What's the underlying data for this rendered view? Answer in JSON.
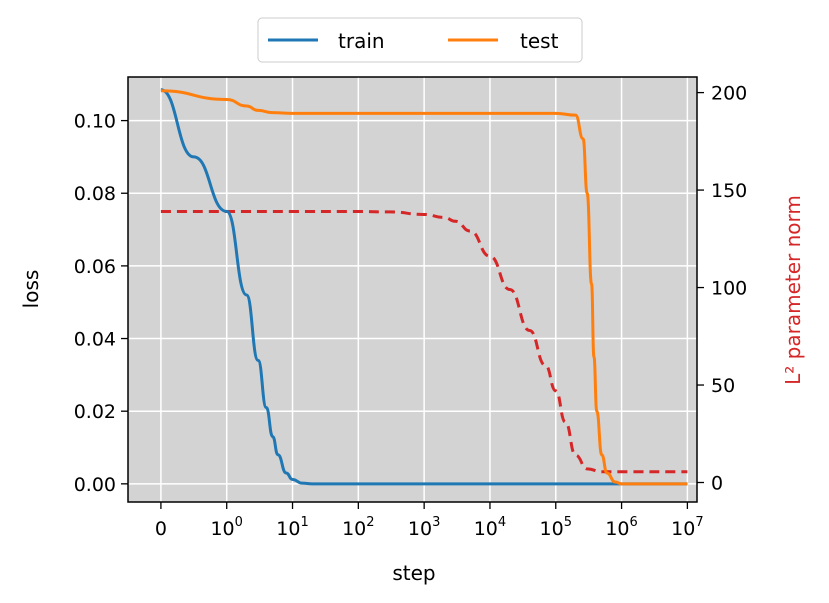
{
  "chart_data": {
    "type": "line",
    "xlabel": "step",
    "ylabel": "loss",
    "ylabel_right": "L² parameter norm",
    "xscale": "symlog",
    "xlim": [
      -0.5,
      14000000
    ],
    "ylim": [
      -0.005,
      0.112
    ],
    "ylim_right": [
      -10,
      208
    ],
    "grid": true,
    "legend": {
      "placement": "top-center",
      "columns": 2,
      "labels": [
        "train",
        "test"
      ]
    },
    "xticks": [
      {
        "value": 0,
        "mantissa": "0",
        "exp": ""
      },
      {
        "value": 1,
        "mantissa": "10",
        "exp": "0"
      },
      {
        "value": 10,
        "mantissa": "10",
        "exp": "1"
      },
      {
        "value": 100,
        "mantissa": "10",
        "exp": "2"
      },
      {
        "value": 1000,
        "mantissa": "10",
        "exp": "3"
      },
      {
        "value": 10000,
        "mantissa": "10",
        "exp": "4"
      },
      {
        "value": 100000,
        "mantissa": "10",
        "exp": "5"
      },
      {
        "value": 1000000,
        "mantissa": "10",
        "exp": "6"
      },
      {
        "value": 10000000,
        "mantissa": "10",
        "exp": "7"
      }
    ],
    "yticks_left": [
      "0.00",
      "0.02",
      "0.04",
      "0.06",
      "0.08",
      "0.10"
    ],
    "yticks_left_values": [
      0.0,
      0.02,
      0.04,
      0.06,
      0.08,
      0.1
    ],
    "yticks_right": [
      "0",
      "50",
      "100",
      "150",
      "200"
    ],
    "yticks_right_values": [
      0,
      50,
      100,
      150,
      200
    ],
    "series": [
      {
        "name": "train",
        "axis": "left",
        "color": "#1f77b4",
        "style": "solid",
        "points": [
          [
            0,
            0.1085
          ],
          [
            0.5,
            0.09
          ],
          [
            1,
            0.075
          ],
          [
            2,
            0.052
          ],
          [
            3,
            0.034
          ],
          [
            4,
            0.021
          ],
          [
            5,
            0.013
          ],
          [
            6,
            0.008
          ],
          [
            8,
            0.003
          ],
          [
            10,
            0.0012
          ],
          [
            14,
            0.0002
          ],
          [
            20,
            0.0
          ],
          [
            100,
            0.0
          ],
          [
            1000,
            0.0
          ],
          [
            100000,
            0.0
          ],
          [
            10000000,
            0.0
          ]
        ]
      },
      {
        "name": "test",
        "axis": "left",
        "color": "#ff7f0e",
        "style": "solid",
        "points": [
          [
            0,
            0.1082
          ],
          [
            1,
            0.1058
          ],
          [
            2,
            0.104
          ],
          [
            3,
            0.1028
          ],
          [
            5,
            0.1022
          ],
          [
            10,
            0.102
          ],
          [
            100,
            0.102
          ],
          [
            1000,
            0.102
          ],
          [
            10000,
            0.102
          ],
          [
            100000,
            0.102
          ],
          [
            200000,
            0.1015
          ],
          [
            260000,
            0.095
          ],
          [
            300000,
            0.08
          ],
          [
            350000,
            0.055
          ],
          [
            380000,
            0.035
          ],
          [
            420000,
            0.02
          ],
          [
            500000,
            0.008
          ],
          [
            600000,
            0.003
          ],
          [
            800000,
            0.0005
          ],
          [
            1000000,
            0.0
          ],
          [
            10000000,
            0.0
          ]
        ]
      },
      {
        "name": "",
        "axis": "right",
        "color": "#d62728",
        "style": "dashed",
        "points": [
          [
            0,
            139
          ],
          [
            1,
            139
          ],
          [
            10,
            139
          ],
          [
            100,
            139
          ],
          [
            300,
            138.8
          ],
          [
            1000,
            137.5
          ],
          [
            2000,
            136
          ],
          [
            3000,
            134
          ],
          [
            5000,
            129
          ],
          [
            10000,
            116
          ],
          [
            20000,
            99
          ],
          [
            40000,
            78
          ],
          [
            70000,
            60
          ],
          [
            100000,
            47
          ],
          [
            140000,
            31
          ],
          [
            200000,
            14
          ],
          [
            300000,
            7
          ],
          [
            500000,
            5.5
          ],
          [
            1000000,
            5.5
          ],
          [
            10000000,
            5.5
          ]
        ]
      }
    ]
  }
}
